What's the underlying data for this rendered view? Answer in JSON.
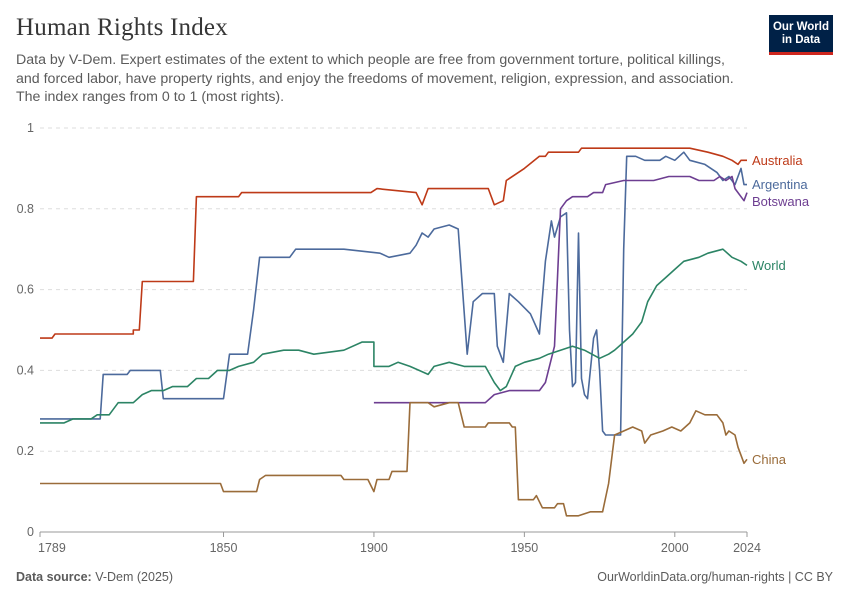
{
  "header": {
    "title": "Human Rights Index",
    "subtitle": "Data by V-Dem. Expert estimates of the extent to which people are free from government torture, political killings, and forced labor, have property rights, and enjoy the freedoms of movement, religion, expression, and association. The index ranges from 0 to 1 (most rights).",
    "logo_line1": "Our World",
    "logo_line2": "in Data"
  },
  "footer": {
    "source_label": "Data source:",
    "source_value": "V-Dem (2025)",
    "url": "OurWorldinData.org/human-rights | CC BY"
  },
  "chart_data": {
    "type": "line",
    "title": "Human Rights Index",
    "xlabel": "",
    "ylabel": "",
    "xlim": [
      1789,
      2024
    ],
    "ylim": [
      0,
      1
    ],
    "x_ticks": [
      1789,
      1850,
      1900,
      1950,
      2000,
      2024
    ],
    "y_ticks": [
      0,
      0.2,
      0.4,
      0.6,
      0.8,
      1
    ],
    "y_tick_labels": [
      "0",
      "0.2",
      "0.4",
      "0.6",
      "0.8",
      "1"
    ],
    "grid": "horizontal dashed",
    "legend": "inline labels at right end of lines",
    "series": [
      {
        "name": "Australia",
        "color": "#be3a18",
        "points": [
          [
            1789,
            0.48
          ],
          [
            1793,
            0.48
          ],
          [
            1794,
            0.49
          ],
          [
            1820,
            0.49
          ],
          [
            1820,
            0.5
          ],
          [
            1822,
            0.5
          ],
          [
            1823,
            0.62
          ],
          [
            1840,
            0.62
          ],
          [
            1841,
            0.83
          ],
          [
            1855,
            0.83
          ],
          [
            1856,
            0.84
          ],
          [
            1899,
            0.84
          ],
          [
            1901,
            0.85
          ],
          [
            1914,
            0.84
          ],
          [
            1916,
            0.81
          ],
          [
            1918,
            0.85
          ],
          [
            1938,
            0.85
          ],
          [
            1940,
            0.81
          ],
          [
            1943,
            0.82
          ],
          [
            1944,
            0.87
          ],
          [
            1950,
            0.9
          ],
          [
            1955,
            0.93
          ],
          [
            1957,
            0.93
          ],
          [
            1958,
            0.94
          ],
          [
            1968,
            0.94
          ],
          [
            1969,
            0.95
          ],
          [
            2005,
            0.95
          ],
          [
            2011,
            0.94
          ],
          [
            2016,
            0.93
          ],
          [
            2019,
            0.92
          ],
          [
            2021,
            0.91
          ],
          [
            2022,
            0.92
          ],
          [
            2024,
            0.92
          ]
        ]
      },
      {
        "name": "Argentina",
        "color": "#4c6a9c",
        "points": [
          [
            1789,
            0.28
          ],
          [
            1809,
            0.28
          ],
          [
            1810,
            0.39
          ],
          [
            1818,
            0.39
          ],
          [
            1819,
            0.4
          ],
          [
            1829,
            0.4
          ],
          [
            1830,
            0.33
          ],
          [
            1850,
            0.33
          ],
          [
            1852,
            0.44
          ],
          [
            1858,
            0.44
          ],
          [
            1860,
            0.55
          ],
          [
            1862,
            0.68
          ],
          [
            1872,
            0.68
          ],
          [
            1874,
            0.7
          ],
          [
            1890,
            0.7
          ],
          [
            1902,
            0.69
          ],
          [
            1905,
            0.68
          ],
          [
            1912,
            0.69
          ],
          [
            1914,
            0.71
          ],
          [
            1916,
            0.74
          ],
          [
            1918,
            0.73
          ],
          [
            1920,
            0.75
          ],
          [
            1925,
            0.76
          ],
          [
            1928,
            0.75
          ],
          [
            1931,
            0.44
          ],
          [
            1933,
            0.57
          ],
          [
            1936,
            0.59
          ],
          [
            1940,
            0.59
          ],
          [
            1941,
            0.46
          ],
          [
            1943,
            0.42
          ],
          [
            1945,
            0.59
          ],
          [
            1948,
            0.57
          ],
          [
            1952,
            0.54
          ],
          [
            1955,
            0.49
          ],
          [
            1957,
            0.67
          ],
          [
            1959,
            0.77
          ],
          [
            1960,
            0.73
          ],
          [
            1962,
            0.78
          ],
          [
            1964,
            0.79
          ],
          [
            1965,
            0.5
          ],
          [
            1966,
            0.36
          ],
          [
            1967,
            0.37
          ],
          [
            1968,
            0.74
          ],
          [
            1969,
            0.38
          ],
          [
            1970,
            0.34
          ],
          [
            1971,
            0.33
          ],
          [
            1973,
            0.48
          ],
          [
            1974,
            0.5
          ],
          [
            1975,
            0.4
          ],
          [
            1976,
            0.25
          ],
          [
            1977,
            0.24
          ],
          [
            1982,
            0.24
          ],
          [
            1983,
            0.7
          ],
          [
            1984,
            0.93
          ],
          [
            1987,
            0.93
          ],
          [
            1990,
            0.92
          ],
          [
            1995,
            0.92
          ],
          [
            1997,
            0.93
          ],
          [
            2000,
            0.92
          ],
          [
            2003,
            0.94
          ],
          [
            2005,
            0.92
          ],
          [
            2010,
            0.91
          ],
          [
            2014,
            0.89
          ],
          [
            2016,
            0.87
          ],
          [
            2018,
            0.88
          ],
          [
            2020,
            0.86
          ],
          [
            2022,
            0.9
          ],
          [
            2023,
            0.86
          ],
          [
            2024,
            0.86
          ]
        ]
      },
      {
        "name": "Botswana",
        "color": "#6d3e91",
        "points": [
          [
            1900,
            0.32
          ],
          [
            1937,
            0.32
          ],
          [
            1940,
            0.34
          ],
          [
            1945,
            0.35
          ],
          [
            1950,
            0.35
          ],
          [
            1955,
            0.35
          ],
          [
            1957,
            0.37
          ],
          [
            1960,
            0.46
          ],
          [
            1962,
            0.8
          ],
          [
            1964,
            0.82
          ],
          [
            1966,
            0.83
          ],
          [
            1971,
            0.83
          ],
          [
            1973,
            0.84
          ],
          [
            1976,
            0.84
          ],
          [
            1977,
            0.86
          ],
          [
            1983,
            0.87
          ],
          [
            1993,
            0.87
          ],
          [
            1998,
            0.88
          ],
          [
            2005,
            0.88
          ],
          [
            2008,
            0.87
          ],
          [
            2013,
            0.87
          ],
          [
            2015,
            0.88
          ],
          [
            2017,
            0.87
          ],
          [
            2019,
            0.88
          ],
          [
            2020,
            0.85
          ],
          [
            2022,
            0.83
          ],
          [
            2023,
            0.82
          ],
          [
            2024,
            0.84
          ]
        ]
      },
      {
        "name": "World",
        "color": "#2c8465",
        "points": [
          [
            1789,
            0.27
          ],
          [
            1797,
            0.27
          ],
          [
            1800,
            0.28
          ],
          [
            1806,
            0.28
          ],
          [
            1808,
            0.29
          ],
          [
            1812,
            0.29
          ],
          [
            1815,
            0.32
          ],
          [
            1820,
            0.32
          ],
          [
            1823,
            0.34
          ],
          [
            1826,
            0.35
          ],
          [
            1830,
            0.35
          ],
          [
            1833,
            0.36
          ],
          [
            1838,
            0.36
          ],
          [
            1841,
            0.38
          ],
          [
            1845,
            0.38
          ],
          [
            1848,
            0.4
          ],
          [
            1852,
            0.4
          ],
          [
            1855,
            0.41
          ],
          [
            1860,
            0.42
          ],
          [
            1863,
            0.44
          ],
          [
            1870,
            0.45
          ],
          [
            1875,
            0.45
          ],
          [
            1880,
            0.44
          ],
          [
            1890,
            0.45
          ],
          [
            1896,
            0.47
          ],
          [
            1900,
            0.47
          ],
          [
            1900,
            0.41
          ],
          [
            1905,
            0.41
          ],
          [
            1908,
            0.42
          ],
          [
            1912,
            0.41
          ],
          [
            1915,
            0.4
          ],
          [
            1918,
            0.39
          ],
          [
            1920,
            0.41
          ],
          [
            1925,
            0.42
          ],
          [
            1930,
            0.41
          ],
          [
            1937,
            0.41
          ],
          [
            1940,
            0.37
          ],
          [
            1942,
            0.35
          ],
          [
            1944,
            0.36
          ],
          [
            1947,
            0.41
          ],
          [
            1950,
            0.42
          ],
          [
            1955,
            0.43
          ],
          [
            1958,
            0.44
          ],
          [
            1962,
            0.45
          ],
          [
            1966,
            0.46
          ],
          [
            1970,
            0.45
          ],
          [
            1975,
            0.43
          ],
          [
            1978,
            0.44
          ],
          [
            1980,
            0.45
          ],
          [
            1983,
            0.47
          ],
          [
            1986,
            0.49
          ],
          [
            1989,
            0.52
          ],
          [
            1991,
            0.57
          ],
          [
            1994,
            0.61
          ],
          [
            1997,
            0.63
          ],
          [
            2000,
            0.65
          ],
          [
            2003,
            0.67
          ],
          [
            2008,
            0.68
          ],
          [
            2011,
            0.69
          ],
          [
            2016,
            0.7
          ],
          [
            2019,
            0.68
          ],
          [
            2022,
            0.67
          ],
          [
            2024,
            0.66
          ]
        ]
      },
      {
        "name": "China",
        "color": "#9a6c3a",
        "points": [
          [
            1789,
            0.12
          ],
          [
            1796,
            0.12
          ],
          [
            1797,
            0.12
          ],
          [
            1849,
            0.12
          ],
          [
            1850,
            0.1
          ],
          [
            1861,
            0.1
          ],
          [
            1862,
            0.13
          ],
          [
            1864,
            0.14
          ],
          [
            1889,
            0.14
          ],
          [
            1890,
            0.13
          ],
          [
            1898,
            0.13
          ],
          [
            1900,
            0.1
          ],
          [
            1901,
            0.13
          ],
          [
            1905,
            0.13
          ],
          [
            1906,
            0.15
          ],
          [
            1911,
            0.15
          ],
          [
            1912,
            0.32
          ],
          [
            1918,
            0.32
          ],
          [
            1920,
            0.31
          ],
          [
            1925,
            0.32
          ],
          [
            1928,
            0.32
          ],
          [
            1930,
            0.26
          ],
          [
            1937,
            0.26
          ],
          [
            1938,
            0.27
          ],
          [
            1945,
            0.27
          ],
          [
            1946,
            0.26
          ],
          [
            1947,
            0.26
          ],
          [
            1948,
            0.08
          ],
          [
            1953,
            0.08
          ],
          [
            1954,
            0.09
          ],
          [
            1956,
            0.06
          ],
          [
            1960,
            0.06
          ],
          [
            1961,
            0.07
          ],
          [
            1963,
            0.07
          ],
          [
            1964,
            0.04
          ],
          [
            1968,
            0.04
          ],
          [
            1972,
            0.05
          ],
          [
            1976,
            0.05
          ],
          [
            1978,
            0.12
          ],
          [
            1980,
            0.24
          ],
          [
            1983,
            0.25
          ],
          [
            1986,
            0.26
          ],
          [
            1989,
            0.25
          ],
          [
            1990,
            0.22
          ],
          [
            1992,
            0.24
          ],
          [
            1996,
            0.25
          ],
          [
            1999,
            0.26
          ],
          [
            2002,
            0.25
          ],
          [
            2005,
            0.27
          ],
          [
            2007,
            0.3
          ],
          [
            2010,
            0.29
          ],
          [
            2014,
            0.29
          ],
          [
            2016,
            0.27
          ],
          [
            2017,
            0.24
          ],
          [
            2018,
            0.25
          ],
          [
            2020,
            0.24
          ],
          [
            2021,
            0.21
          ],
          [
            2023,
            0.17
          ],
          [
            2024,
            0.18
          ]
        ]
      }
    ]
  }
}
